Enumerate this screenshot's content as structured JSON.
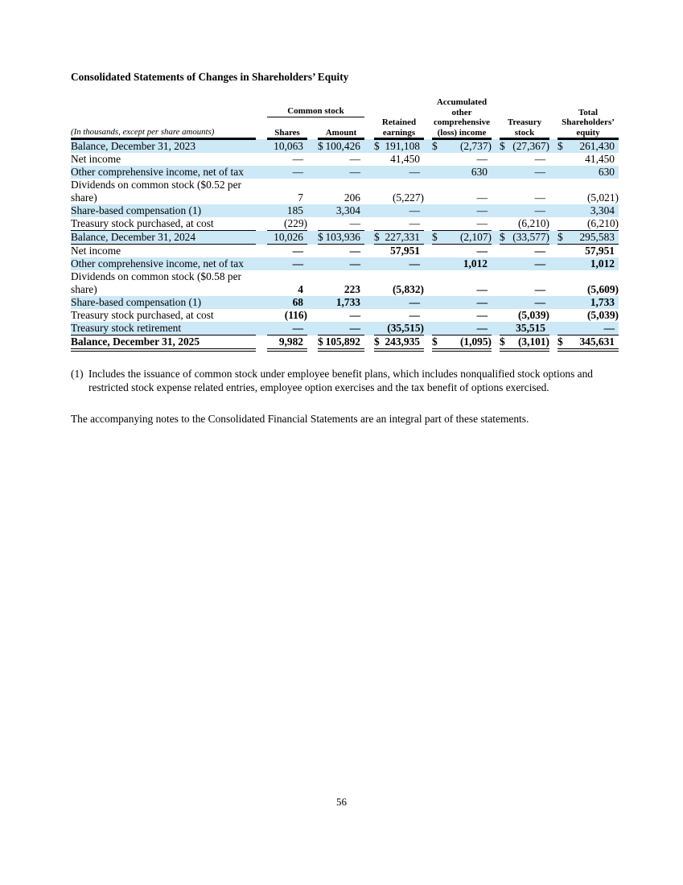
{
  "page": {
    "title": "Consolidated Statements of Changes in Shareholders’ Equity",
    "footnote_marker": "(1)",
    "footnote_text": "Includes the issuance of common stock under employee benefit plans, which includes nonqualified stock options and restricted stock expense related entries, employee option exercises and the tax benefit of options exercised.",
    "closing_note": "The accompanying notes to the Consolidated Financial Statements are an integral part of these statements.",
    "page_number": "56"
  },
  "colors": {
    "row_highlight": "#cde8f6"
  },
  "table": {
    "caption": "(In thousands, except per share amounts)",
    "group_header": "Common stock",
    "columns": {
      "shares": "Shares",
      "amount": "Amount",
      "retained": "Retained\nearnings",
      "aoci": "Accumulated\nother\ncomprehensive\n(loss) income",
      "treasury": "Treasury\nstock",
      "total": "Total\nShareholders’\nequity"
    },
    "rows": [
      {
        "label": "Balance, December 31, 2023",
        "cells": [
          "10,063",
          "$100,426",
          "$191,108",
          "$(2,737)",
          "$(27,367)",
          "$261,430"
        ],
        "highlight": true,
        "bold": false,
        "label_bold": false,
        "border": "none"
      },
      {
        "label": "Net income",
        "cells": [
          "—",
          "—",
          "41,450",
          "—",
          "—",
          "41,450"
        ],
        "highlight": false,
        "bold": false,
        "label_bold": false,
        "border": "none"
      },
      {
        "label": "Other comprehensive income, net of tax",
        "cells": [
          "—",
          "—",
          "—",
          "630",
          "—",
          "630"
        ],
        "highlight": true,
        "bold": false,
        "label_bold": false,
        "border": "none"
      },
      {
        "label": "Dividends on common stock ($0.52 per share)",
        "cells": [
          "7",
          "206",
          "(5,227)",
          "—",
          "—",
          "(5,021)"
        ],
        "highlight": false,
        "bold": false,
        "label_bold": false,
        "border": "none"
      },
      {
        "label": "Share-based compensation (1)",
        "cells": [
          "185",
          "3,304",
          "—",
          "—",
          "—",
          "3,304"
        ],
        "highlight": true,
        "bold": false,
        "label_bold": false,
        "border": "none"
      },
      {
        "label": "Treasury stock purchased, at cost",
        "cells": [
          "(229)",
          "—",
          "—",
          "—",
          "(6,210)",
          "(6,210)"
        ],
        "highlight": false,
        "bold": false,
        "label_bold": false,
        "border": "thin"
      },
      {
        "label": "Balance, December 31, 2024",
        "cells": [
          "10,026",
          "$103,936",
          "$227,331",
          "$(2,107)",
          "$(33,577)",
          "$295,583"
        ],
        "highlight": true,
        "bold": false,
        "label_bold": false,
        "border": "thin"
      },
      {
        "label": "Net income",
        "cells": [
          "—",
          "—",
          "57,951",
          "—",
          "—",
          "57,951"
        ],
        "highlight": false,
        "bold": true,
        "label_bold": false,
        "border": "none"
      },
      {
        "label": "Other comprehensive income, net of tax",
        "cells": [
          "—",
          "—",
          "—",
          "1,012",
          "—",
          "1,012"
        ],
        "highlight": true,
        "bold": true,
        "label_bold": false,
        "border": "none"
      },
      {
        "label": "Dividends on common stock ($0.58 per share)",
        "cells": [
          "4",
          "223",
          "(5,832)",
          "—",
          "—",
          "(5,609)"
        ],
        "highlight": false,
        "bold": true,
        "label_bold": false,
        "border": "none"
      },
      {
        "label": "Share-based compensation (1)",
        "cells": [
          "68",
          "1,733",
          "—",
          "—",
          "—",
          "1,733"
        ],
        "highlight": true,
        "bold": true,
        "label_bold": false,
        "border": "none"
      },
      {
        "label": "Treasury stock purchased, at cost",
        "cells": [
          "(116)",
          "—",
          "—",
          "—",
          "(5,039)",
          "(5,039)"
        ],
        "highlight": false,
        "bold": true,
        "label_bold": false,
        "border": "none"
      },
      {
        "label": "Treasury stock retirement",
        "cells": [
          "—",
          "—",
          "(35,515)",
          "—",
          "35,515",
          "—"
        ],
        "highlight": true,
        "bold": true,
        "label_bold": false,
        "border": "thin"
      },
      {
        "label": "Balance, December 31, 2025",
        "cells": [
          "9,982",
          "$105,892",
          "$243,935",
          "$(1,095)",
          "$(3,101)",
          "$345,631"
        ],
        "highlight": false,
        "bold": true,
        "label_bold": true,
        "border": "double"
      }
    ]
  }
}
